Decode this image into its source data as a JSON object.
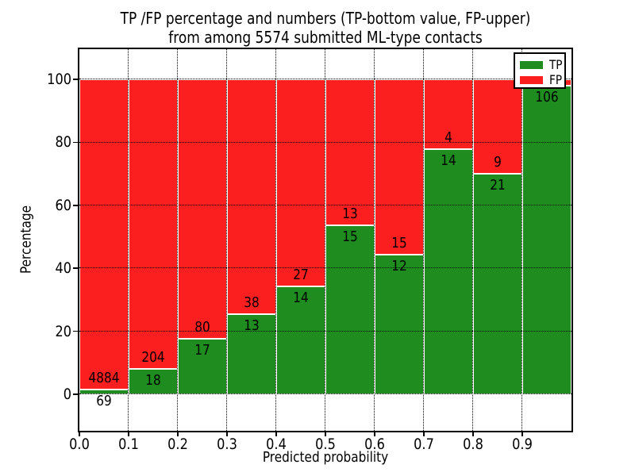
{
  "title": {
    "line1": "TP /FP percentage and numbers (TP-bottom value, FP-upper)",
    "line2": "from among 5574 submitted ML-type contacts"
  },
  "axes": {
    "xlabel": "Predicted probability",
    "ylabel": "Percentage",
    "xtick_labels": [
      "0.0",
      "0.1",
      "0.2",
      "0.3",
      "0.4",
      "0.5",
      "0.6",
      "0.7",
      "0.8",
      "0.9"
    ],
    "ytick_labels": [
      "0",
      "20",
      "40",
      "60",
      "80",
      "100"
    ],
    "ytick_values": [
      0,
      20,
      40,
      60,
      80,
      100
    ],
    "xlim": [
      0.0,
      1.0
    ]
  },
  "legend": {
    "items": [
      {
        "label": "TP",
        "color": "#1e8c1e"
      },
      {
        "label": "FP",
        "color": "#fc1f1f"
      }
    ]
  },
  "colors": {
    "tp": "#1e8c1e",
    "fp": "#fc1f1f",
    "grid": "#000000",
    "bar_edge": "#ffffff",
    "axis": "#000000",
    "background": "#ffffff"
  },
  "chart_data": {
    "type": "bar",
    "stacked": true,
    "percent_axis": true,
    "title": "TP /FP percentage and numbers (TP-bottom value, FP-upper) from among 5574 submitted ML-type contacts",
    "xlabel": "Predicted probability",
    "ylabel": "Percentage",
    "bin_width": 0.1,
    "legend_position": "upper right",
    "grid": true,
    "series": [
      {
        "name": "TP",
        "color": "#1e8c1e"
      },
      {
        "name": "FP",
        "color": "#fc1f1f"
      }
    ],
    "bars": [
      {
        "bin_start": 0.0,
        "bin_end": 0.1,
        "tp_count": 69,
        "fp_count": 4884,
        "tp_percent": 1.39,
        "tp_label": "69",
        "fp_label": "4884"
      },
      {
        "bin_start": 0.1,
        "bin_end": 0.2,
        "tp_count": 18,
        "fp_count": 204,
        "tp_percent": 8.11,
        "tp_label": "18",
        "fp_label": "204"
      },
      {
        "bin_start": 0.2,
        "bin_end": 0.3,
        "tp_count": 17,
        "fp_count": 80,
        "tp_percent": 17.53,
        "tp_label": "17",
        "fp_label": "80"
      },
      {
        "bin_start": 0.3,
        "bin_end": 0.4,
        "tp_count": 13,
        "fp_count": 38,
        "tp_percent": 25.49,
        "tp_label": "13",
        "fp_label": "38"
      },
      {
        "bin_start": 0.4,
        "bin_end": 0.5,
        "tp_count": 14,
        "fp_count": 27,
        "tp_percent": 34.15,
        "tp_label": "14",
        "fp_label": "27"
      },
      {
        "bin_start": 0.5,
        "bin_end": 0.6,
        "tp_count": 15,
        "fp_count": 13,
        "tp_percent": 53.57,
        "tp_label": "15",
        "fp_label": "13"
      },
      {
        "bin_start": 0.6,
        "bin_end": 0.7,
        "tp_count": 12,
        "fp_count": 15,
        "tp_percent": 44.44,
        "tp_label": "12",
        "fp_label": "15"
      },
      {
        "bin_start": 0.7,
        "bin_end": 0.8,
        "tp_count": 14,
        "fp_count": 4,
        "tp_percent": 77.78,
        "tp_label": "14",
        "fp_label": "4"
      },
      {
        "bin_start": 0.8,
        "bin_end": 0.9,
        "tp_count": 21,
        "fp_count": 9,
        "tp_percent": 70.0,
        "tp_label": "21",
        "fp_label": "9"
      },
      {
        "bin_start": 0.9,
        "bin_end": 1.0,
        "tp_count": 106,
        "fp_count": null,
        "tp_percent": 98.1,
        "tp_label": "106",
        "fp_label": ""
      }
    ]
  }
}
